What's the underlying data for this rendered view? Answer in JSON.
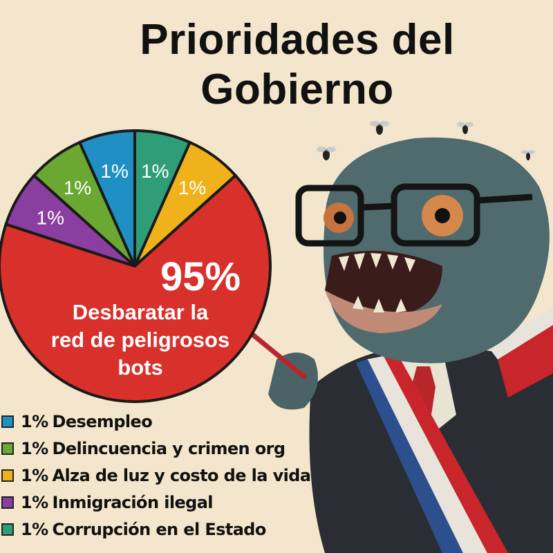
{
  "title": "Prioridades del Gobierno",
  "title_line1": "Prioridades del",
  "title_line2": "Gobierno",
  "colors": {
    "background": "#f3e6cc",
    "main_slice": "#d8302a",
    "blue": "#1f8fc4",
    "green": "#6aa832",
    "yellow": "#f0b21a",
    "purple": "#8a3fa0",
    "teal": "#2f9e78"
  },
  "chart_data": {
    "type": "pie",
    "title": "Prioridades del Gobierno",
    "slices": [
      {
        "label": "Corrupción en el Estado",
        "value": 1,
        "value_label": "1%",
        "color": "#2f9e78"
      },
      {
        "label": "Alza de luz y costo de la vida",
        "value": 1,
        "value_label": "1%",
        "color": "#f0b21a"
      },
      {
        "label": "Desbaratar la red de peligrosos bots",
        "value": 95,
        "value_label": "95%",
        "color": "#d8302a"
      },
      {
        "label": "Inmigración ilegal",
        "value": 1,
        "value_label": "1%",
        "color": "#8a3fa0"
      },
      {
        "label": "Delincuencia y crimen org",
        "value": 1,
        "value_label": "1%",
        "color": "#6aa832"
      },
      {
        "label": "Desempleo",
        "value": 1,
        "value_label": "1%",
        "color": "#1f8fc4"
      }
    ],
    "main_label_lines": [
      "Desbaratar la",
      "red de peligrosos",
      "bots"
    ]
  },
  "legend": [
    {
      "percent": "1%",
      "label": "Desempleo",
      "color": "#1f8fc4"
    },
    {
      "percent": "1%",
      "label": "Delincuencia y crimen org",
      "color": "#6aa832"
    },
    {
      "percent": "1%",
      "label": "Alza de luz y costo de la vida",
      "color": "#f0b21a"
    },
    {
      "percent": "1%",
      "label": "Inmigración ilegal",
      "color": "#8a3fa0"
    },
    {
      "percent": "1%",
      "label": "Corrupción en el Estado",
      "color": "#2f9e78"
    }
  ],
  "illustration": "fish-man-with-glasses-and-presidential-sash-icon"
}
